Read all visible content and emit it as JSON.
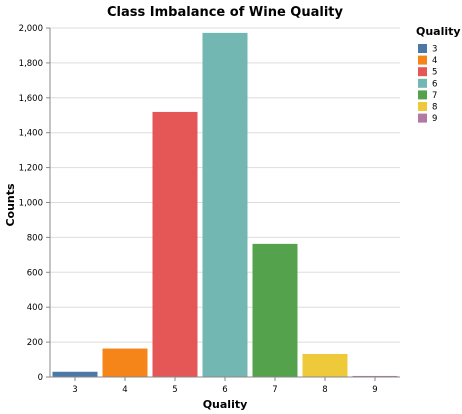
{
  "chart_data": {
    "type": "bar",
    "title": "Class Imbalance of Wine Quality",
    "xlabel": "Quality",
    "ylabel": "Counts",
    "categories": [
      "3",
      "4",
      "5",
      "6",
      "7",
      "8",
      "9"
    ],
    "values": [
      30,
      163,
      1519,
      1972,
      763,
      132,
      6
    ],
    "colors": [
      "#4c78a8",
      "#f58518",
      "#e45756",
      "#72b7b2",
      "#54a24b",
      "#eeca3b",
      "#b279a2"
    ],
    "ylim": [
      0,
      2000
    ],
    "yticks": [
      0,
      200,
      400,
      600,
      800,
      1000,
      1200,
      1400,
      1600,
      1800,
      2000
    ],
    "ytick_labels": [
      "0",
      "200",
      "400",
      "600",
      "800",
      "1,000",
      "1,200",
      "1,400",
      "1,600",
      "1,800",
      "2,000"
    ],
    "grid": true,
    "legend": {
      "title": "Quality",
      "placement": "top-right",
      "entries": [
        "3",
        "4",
        "5",
        "6",
        "7",
        "8",
        "9"
      ]
    }
  }
}
